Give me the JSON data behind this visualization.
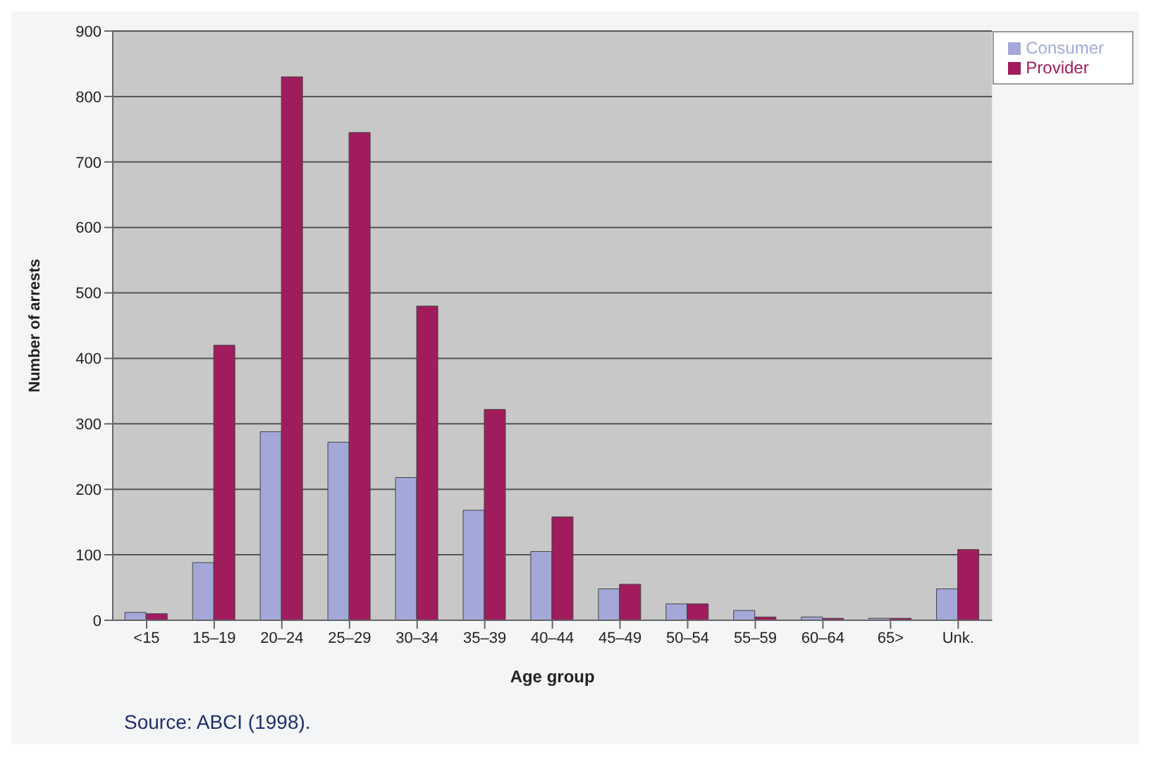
{
  "chart_data": {
    "type": "bar",
    "xlabel": "Age group",
    "ylabel": "Number of arrests",
    "categories": [
      "<15",
      "15–19",
      "20–24",
      "25–29",
      "30–34",
      "35–39",
      "40–44",
      "45–49",
      "50–54",
      "55–59",
      "60–64",
      "65>",
      "Unk."
    ],
    "series": [
      {
        "name": "Consumer",
        "color": "#a3a8d8",
        "values": [
          12,
          88,
          288,
          272,
          218,
          168,
          105,
          48,
          25,
          15,
          5,
          3,
          48
        ]
      },
      {
        "name": "Provider",
        "color": "#a01c5c",
        "values": [
          10,
          420,
          830,
          745,
          480,
          322,
          158,
          55,
          25,
          5,
          3,
          3,
          108
        ]
      }
    ],
    "ylim": [
      0,
      900
    ],
    "yticks": [
      0,
      100,
      200,
      300,
      400,
      500,
      600,
      700,
      800,
      900
    ],
    "grid": "y",
    "legend": "top right",
    "annotations": [
      "Source:   ABCI (1998)."
    ]
  }
}
